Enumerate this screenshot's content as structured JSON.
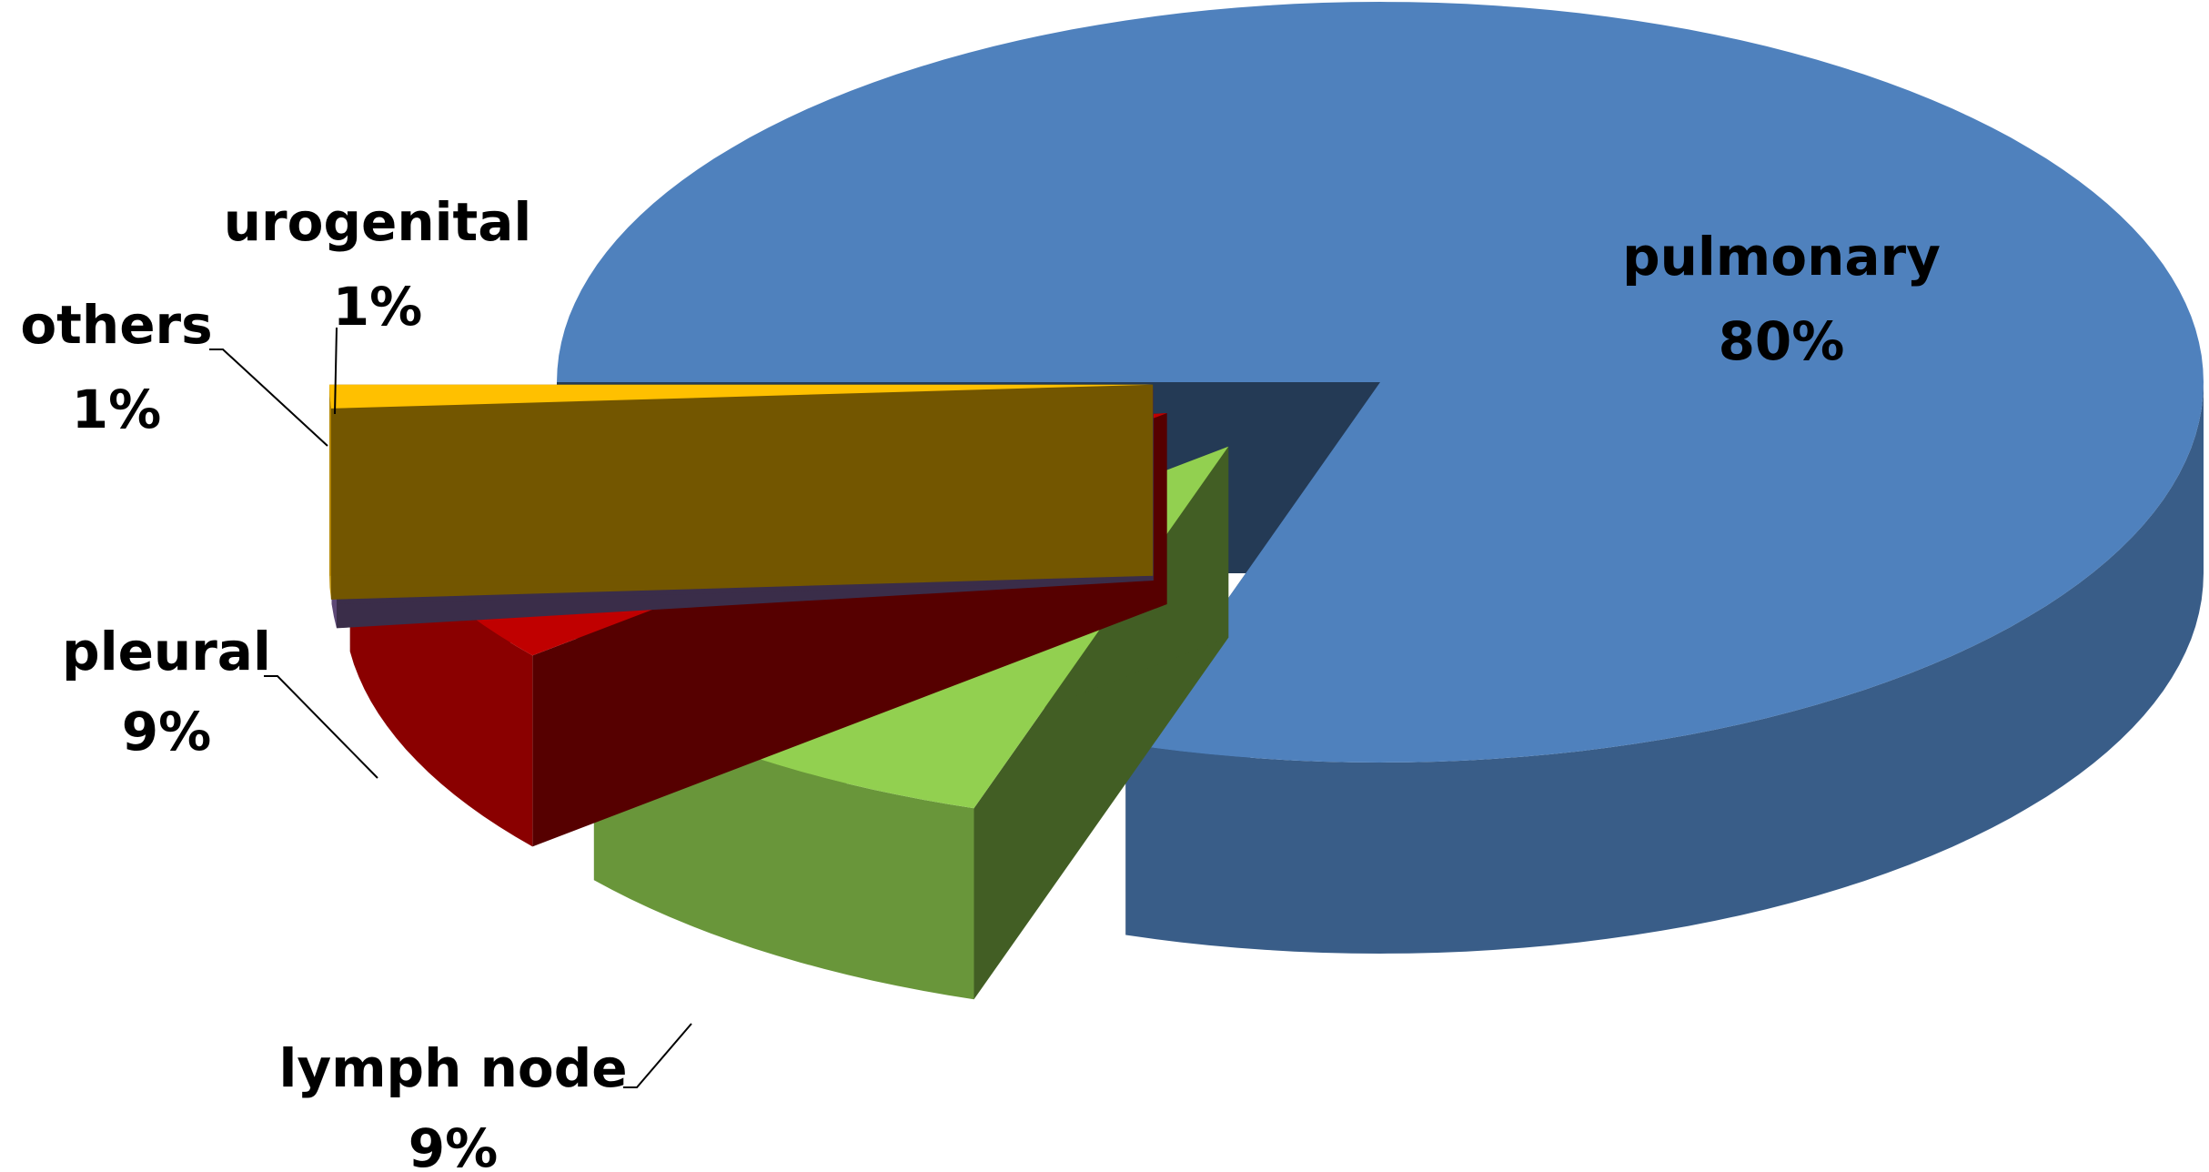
{
  "chart_data": {
    "type": "pie",
    "categories": [
      "pulmonary",
      "lymph node",
      "pleural",
      "others",
      "urogenital"
    ],
    "values": [
      80,
      9,
      9,
      1,
      1
    ],
    "value_labels": [
      "80%",
      "9%",
      "9%",
      "1%",
      "1%"
    ],
    "colors": [
      "#4f81bd",
      "#92d050",
      "#c00000",
      "#8064a2",
      "#ffc000"
    ]
  }
}
